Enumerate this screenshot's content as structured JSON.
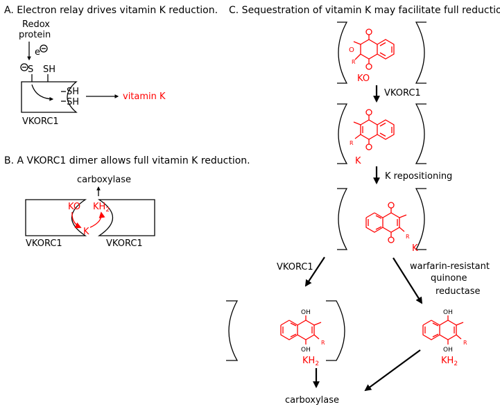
{
  "colors": {
    "ink": "#000000",
    "accent": "#ff0000"
  },
  "panel_a": {
    "heading": "A. Electron relay drives vitamin K reduction.",
    "redox_line1": "Redox",
    "redox_line2": "protein",
    "electron": "e",
    "thiolate": "S",
    "sh_top": "SH",
    "sh_mid": "SH",
    "sh_low": "SH",
    "target": "vitamin K",
    "enzyme": "VKORC1"
  },
  "panel_b": {
    "heading": "B. A VKORC1 dimer allows full vitamin K reduction.",
    "carboxylase": "carboxylase",
    "ko": "KO",
    "kh": "KH",
    "kh_sub": "2",
    "k": "K",
    "enzyme_left": "VKORC1",
    "enzyme_right": "VKORC1"
  },
  "panel_c": {
    "heading": "C. Sequestration of vitamin K may facilitate full reduction.",
    "ko": "KO",
    "step1": "VKORC1",
    "k1": "K",
    "step2": "K repositioning",
    "k2": "K",
    "left_enzyme": "VKORC1",
    "right_line1": "warfarin-resistant",
    "right_line2": "quinone",
    "right_line3": "reductase",
    "kh_left": "KH",
    "kh_left_sub": "2",
    "kh_right": "KH",
    "kh_right_sub": "2",
    "carboxylase": "carboxylase",
    "o": "O",
    "oh": "OH",
    "r": "R"
  }
}
